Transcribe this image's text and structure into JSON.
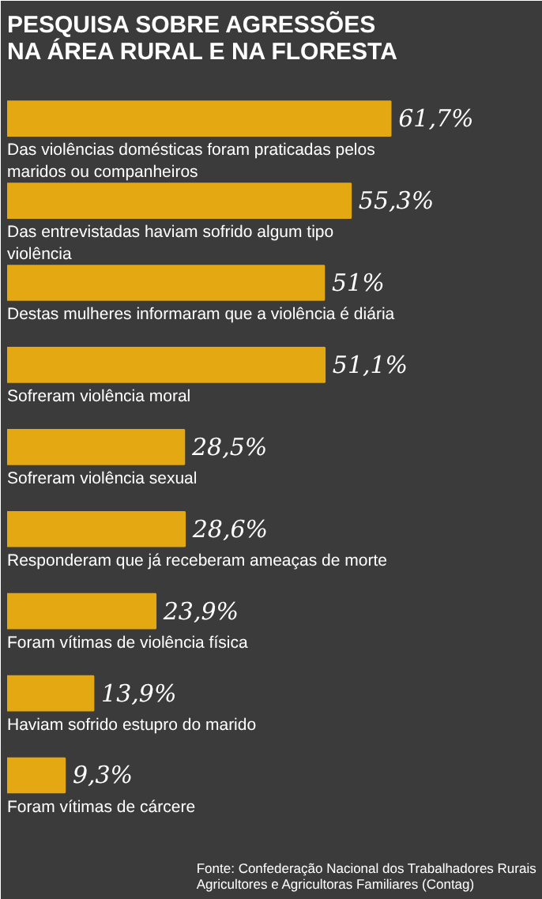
{
  "chart_data": {
    "type": "bar",
    "orientation": "horizontal",
    "title": "PESQUISA SOBRE AGRESSÕES\nNA ÁREA RURAL E NA FLORESTA",
    "categories": [
      "Das violências domésticas foram praticadas pelos maridos ou companheiros",
      "Das entrevistadas haviam sofrido algum tipo violência",
      "Destas mulheres informaram que a violência é diária",
      "Sofreram violência moral",
      "Sofreram violência sexual",
      "Responderam que já receberam ameaças de morte",
      "Foram vítimas de violência física",
      "Haviam sofrido estupro do marido",
      "Foram vítimas de cárcere"
    ],
    "values": [
      61.7,
      55.3,
      51,
      51.1,
      28.5,
      28.6,
      23.9,
      13.9,
      9.3
    ],
    "value_labels": [
      "61,7%",
      "55,3%",
      "51%",
      "51,1%",
      "28,5%",
      "28,6%",
      "23,9%",
      "13,9%",
      "9,3%"
    ],
    "color": "#e3a812",
    "annotations": [
      "Fonte: Confederação Nacional dos Trabalhadores Rurais Agricultores e Agricultoras Familiares (Contag)"
    ]
  }
}
